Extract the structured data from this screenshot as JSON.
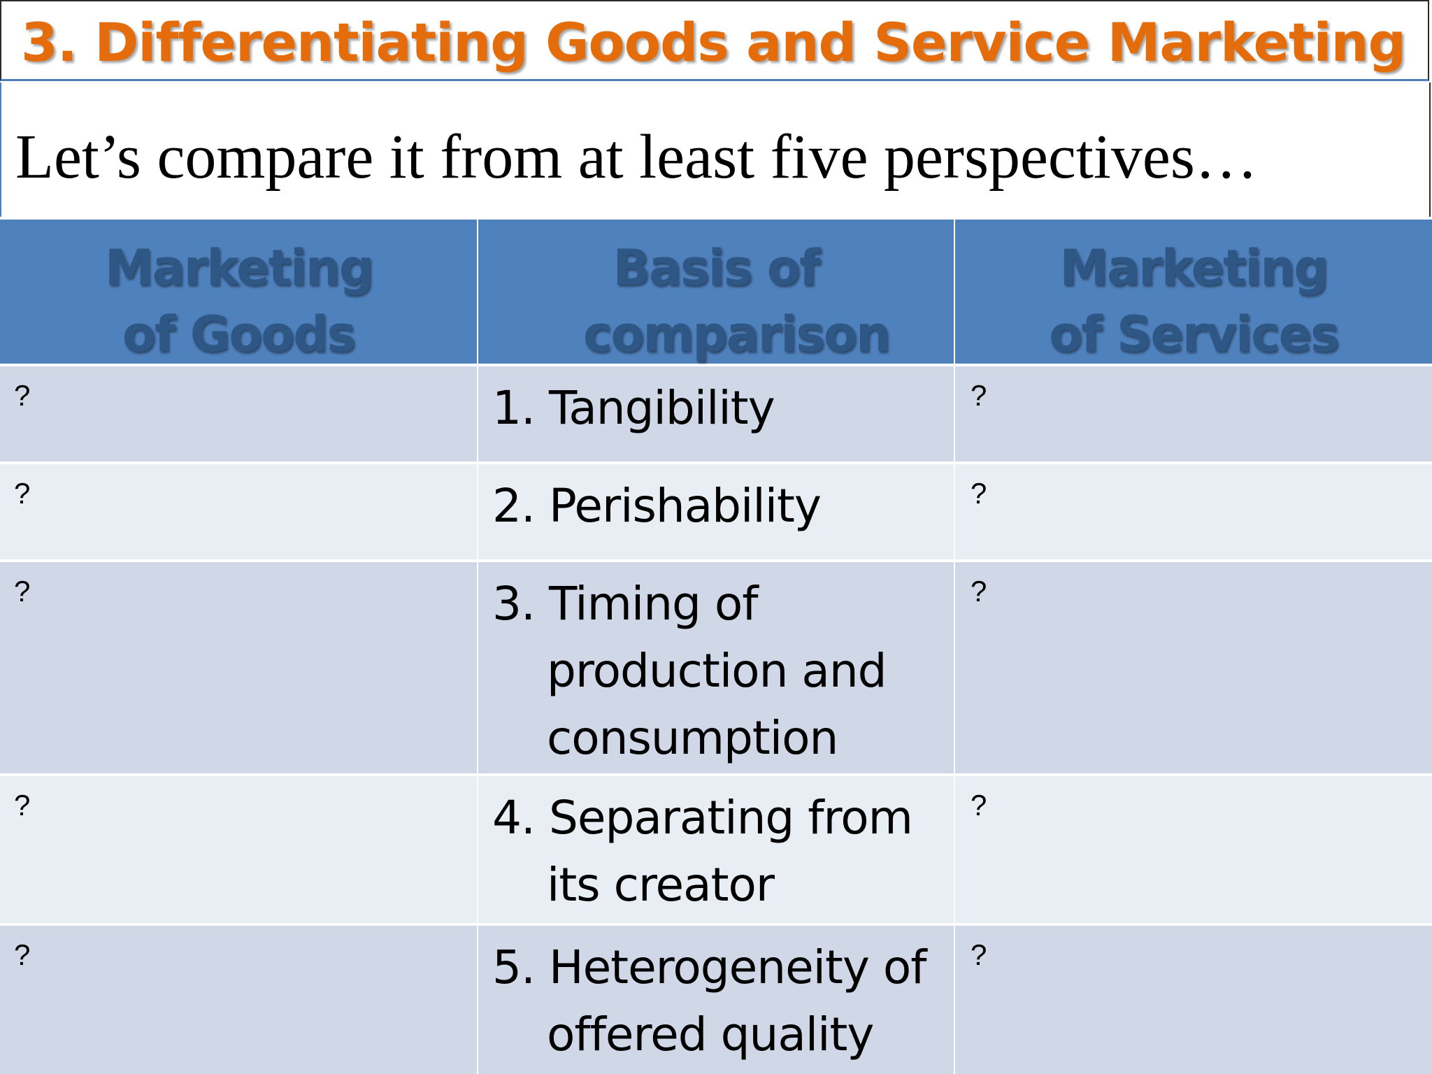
{
  "slide": {
    "title": "3. Differentiating Goods and Service Marketing",
    "subtitle": "Let’s compare it from at least five perspectives…"
  },
  "table": {
    "headers": [
      "Marketing of Goods",
      "Basis of comparison",
      "Marketing of Services"
    ],
    "rows": [
      {
        "goods": "?",
        "basis": "1. Tangibility",
        "services": "?"
      },
      {
        "goods": "?",
        "basis": "2. Perishability",
        "services": "?"
      },
      {
        "goods": "?",
        "basis": "3. Timing of production and consumption",
        "services": "?"
      },
      {
        "goods": "?",
        "basis": "4. Separating from its creator",
        "services": "?"
      },
      {
        "goods": "?",
        "basis": "5. Heterogeneity of offered quality",
        "services": "?"
      }
    ]
  },
  "colors": {
    "title": "#e46c0a",
    "header_bg": "#4f81bd",
    "header_text": "#2f5785",
    "row_odd": "#d0d8e8",
    "row_even": "#e9edf4"
  }
}
